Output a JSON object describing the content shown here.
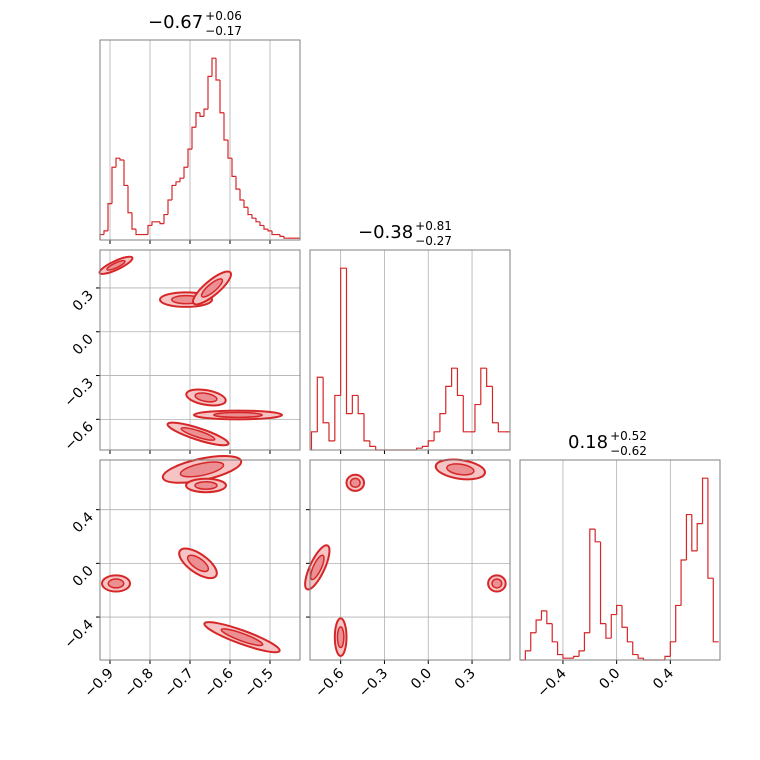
{
  "chart_data": [
    {
      "type": "histogram",
      "color": "#d62728",
      "title": {
        "value": "−0.67",
        "plus": "+0.06",
        "minus": "−0.17"
      },
      "bins": [
        -0.925,
        -0.915,
        -0.905,
        -0.895,
        -0.885,
        -0.875,
        -0.865,
        -0.855,
        -0.845,
        -0.835,
        -0.825,
        -0.815,
        -0.805,
        -0.795,
        -0.785,
        -0.775,
        -0.765,
        -0.755,
        -0.745,
        -0.735,
        -0.725,
        -0.715,
        -0.705,
        -0.695,
        -0.685,
        -0.675,
        -0.665,
        -0.655,
        -0.645,
        -0.635,
        -0.625,
        -0.615,
        -0.605,
        -0.595,
        -0.585,
        -0.575,
        -0.565,
        -0.555,
        -0.545,
        -0.535,
        -0.525,
        -0.515,
        -0.505,
        -0.495,
        -0.485,
        -0.475,
        -0.465,
        -0.455,
        -0.445,
        -0.435,
        -0.425
      ],
      "values": [
        3,
        5,
        20,
        40,
        45,
        44,
        30,
        15,
        6,
        3,
        3,
        3,
        8,
        10,
        10,
        9,
        14,
        22,
        30,
        32,
        34,
        40,
        50,
        62,
        70,
        68,
        72,
        90,
        100,
        88,
        70,
        55,
        45,
        35,
        28,
        22,
        18,
        14,
        12,
        10,
        8,
        6,
        5,
        3,
        3,
        2,
        1,
        1,
        1,
        1
      ],
      "xlim": [
        -0.925,
        -0.425
      ],
      "xticks": [
        {
          "value": -0.9,
          "label": "−0.9"
        },
        {
          "value": -0.8,
          "label": "−0.8"
        },
        {
          "value": -0.7,
          "label": "−0.7"
        },
        {
          "value": -0.6,
          "label": "−0.6"
        },
        {
          "value": -0.5,
          "label": "−0.5"
        }
      ],
      "ylim": [
        0,
        110
      ],
      "grid": true
    },
    {
      "type": "histogram",
      "color": "#d62728",
      "title": {
        "value": "−0.38",
        "plus": "+0.81",
        "minus": "−0.27"
      },
      "bins": [
        -0.8,
        -0.76,
        -0.72,
        -0.68,
        -0.64,
        -0.6,
        -0.56,
        -0.52,
        -0.48,
        -0.44,
        -0.4,
        -0.36,
        -0.32,
        -0.28,
        -0.24,
        -0.2,
        -0.16,
        -0.12,
        -0.08,
        -0.04,
        0.0,
        0.04,
        0.08,
        0.12,
        0.16,
        0.2,
        0.24,
        0.28,
        0.32,
        0.36,
        0.4,
        0.44,
        0.48,
        0.52,
        0.56
      ],
      "values": [
        10,
        40,
        15,
        5,
        30,
        100,
        20,
        30,
        20,
        5,
        2,
        0,
        0,
        0,
        0,
        0,
        0,
        0,
        1,
        2,
        5,
        10,
        20,
        35,
        45,
        30,
        10,
        10,
        25,
        45,
        35,
        15,
        10,
        10
      ],
      "xlim": [
        -0.81,
        0.56
      ],
      "xticks": [
        {
          "value": -0.6,
          "label": "−0.6"
        },
        {
          "value": -0.3,
          "label": "−0.3"
        },
        {
          "value": 0,
          "label": "0.0"
        },
        0.3
      ],
      "ylim": [
        0,
        110
      ],
      "grid": true
    },
    {
      "type": "histogram",
      "color": "#d62728",
      "title": {
        "value": "0.18",
        "plus": "+0.52",
        "minus": "−0.62"
      },
      "bins": [
        -0.72,
        -0.68,
        -0.64,
        -0.6,
        -0.56,
        -0.52,
        -0.48,
        -0.44,
        -0.4,
        -0.36,
        -0.32,
        -0.28,
        -0.24,
        -0.2,
        -0.16,
        -0.12,
        -0.08,
        -0.04,
        0.0,
        0.04,
        0.08,
        0.12,
        0.16,
        0.2,
        0.24,
        0.28,
        0.32,
        0.36,
        0.4,
        0.44,
        0.48,
        0.52,
        0.56,
        0.6,
        0.64,
        0.68,
        0.72,
        0.76
      ],
      "values": [
        0,
        5,
        15,
        22,
        27,
        20,
        10,
        3,
        1,
        1,
        2,
        5,
        15,
        72,
        65,
        20,
        12,
        25,
        30,
        18,
        10,
        3,
        1,
        0,
        0,
        0,
        0,
        2,
        10,
        30,
        55,
        80,
        60,
        75,
        100,
        45,
        10
      ],
      "xlim": [
        -0.72,
        0.77
      ],
      "xticks": [
        {
          "value": -0.4,
          "label": "−0.4"
        },
        {
          "value": 0,
          "label": "0.0"
        },
        0.4
      ],
      "ylim": [
        0,
        110
      ],
      "grid": true
    },
    {
      "type": "contour",
      "color": "#d62728",
      "x": [
        -0.885,
        -0.71,
        -0.645,
        -0.66,
        -0.58,
        -0.68
      ],
      "y": [
        0.455,
        0.22,
        0.3,
        -0.45,
        -0.57,
        -0.7
      ],
      "sx": [
        0.045,
        0.065,
        0.06,
        0.05,
        0.11,
        0.08
      ],
      "sy": [
        0.03,
        0.05,
        0.05,
        0.05,
        0.03,
        0.04
      ],
      "angle": [
        -25,
        0,
        -40,
        10,
        0,
        18
      ],
      "xlim": [
        -0.925,
        -0.425
      ],
      "xticks": [
        {
          "value": -0.9,
          "label": "−0.9"
        },
        {
          "value": -0.8,
          "label": "−0.8"
        },
        {
          "value": -0.7,
          "label": "−0.7"
        },
        {
          "value": -0.6,
          "label": "−0.6"
        },
        {
          "value": -0.5,
          "label": "−0.5"
        }
      ],
      "ylim": [
        -0.81,
        0.56
      ],
      "yticks": [
        0.3,
        {
          "value": 0,
          "label": "0.0"
        },
        {
          "value": -0.3,
          "label": "−0.3"
        },
        {
          "value": -0.6,
          "label": "−0.6"
        }
      ],
      "grid": true
    },
    {
      "type": "contour",
      "color": "#d62728",
      "x": [
        -0.885,
        -0.67,
        -0.66,
        -0.68,
        -0.57
      ],
      "y": [
        -0.15,
        0.7,
        0.58,
        0.0,
        -0.55
      ],
      "sx": [
        0.035,
        0.1,
        0.05,
        0.055,
        0.1
      ],
      "sy": [
        0.06,
        0.08,
        0.05,
        0.07,
        0.05
      ],
      "angle": [
        0,
        -12,
        0,
        35,
        20
      ],
      "xlim": [
        -0.925,
        -0.425
      ],
      "xticks": [
        {
          "value": -0.9,
          "label": "−0.9"
        },
        {
          "value": -0.8,
          "label": "−0.8"
        },
        {
          "value": -0.7,
          "label": "−0.7"
        },
        {
          "value": -0.6,
          "label": "−0.6"
        },
        {
          "value": -0.5,
          "label": "−0.5"
        }
      ],
      "ylim": [
        -0.72,
        0.77
      ],
      "yticks": [
        0.4,
        {
          "value": 0,
          "label": "0.0"
        },
        {
          "value": -0.4,
          "label": "−0.4"
        }
      ],
      "grid": true
    },
    {
      "type": "contour",
      "color": "#d62728",
      "x": [
        -0.5,
        0.22,
        0.47,
        -0.76,
        -0.6
      ],
      "y": [
        0.6,
        0.7,
        -0.15,
        -0.03,
        -0.55
      ],
      "sx": [
        0.06,
        0.17,
        0.06,
        0.05,
        0.04
      ],
      "sy": [
        0.06,
        0.07,
        0.06,
        0.18,
        0.14
      ],
      "angle": [
        0,
        8,
        0,
        25,
        0
      ],
      "xlim": [
        -0.81,
        0.56
      ],
      "xticks": [
        {
          "value": -0.6,
          "label": "−0.6"
        },
        {
          "value": -0.3,
          "label": "−0.3"
        },
        {
          "value": 0,
          "label": "0.0"
        },
        0.3
      ],
      "ylim": [
        -0.72,
        0.77
      ],
      "yticks": [
        0.4,
        {
          "value": 0,
          "label": "0.0"
        },
        {
          "value": -0.4,
          "label": "−0.4"
        }
      ],
      "grid": true
    }
  ]
}
